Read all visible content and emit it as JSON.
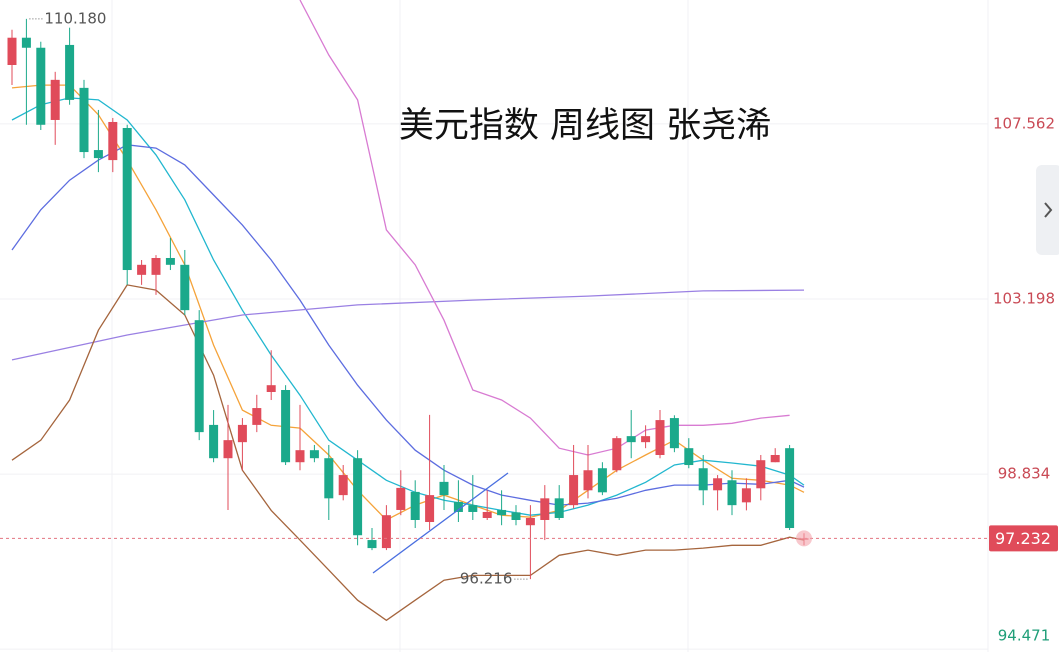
{
  "chart_data": {
    "type": "candlestick",
    "title": "美元指数 周线图 张尧浠",
    "ylim": [
      94.4,
      110.65
    ],
    "yticks": [
      107.562,
      103.198,
      98.834,
      94.471
    ],
    "up_color": "#e04b5a",
    "down_color": "#1ba98b",
    "open": [
      109.03,
      109.71,
      109.46,
      107.66,
      109.53,
      108.46,
      106.91,
      106.66,
      107.46,
      103.8,
      103.8,
      104.22,
      104.05,
      102.67,
      100.06,
      99.23,
      99.63,
      100.06,
      100.88,
      100.93,
      99.13,
      99.43,
      99.23,
      98.31,
      99.23,
      97.19,
      96.99,
      97.94,
      98.39,
      97.64,
      98.64,
      98.14,
      98.06,
      97.74,
      97.94,
      97.88,
      97.56,
      97.69,
      98.23,
      98.06,
      98.43,
      98.98,
      98.93,
      99.78,
      99.63,
      99.31,
      100.23,
      99.48,
      98.98,
      98.43,
      98.68,
      98.13,
      98.48,
      99.13,
      99.48,
      97.2
    ],
    "high": [
      109.91,
      110.18,
      109.61,
      108.86,
      109.96,
      108.66,
      107.91,
      107.71,
      107.54,
      104.17,
      104.29,
      104.72,
      104.42,
      102.92,
      100.43,
      100.56,
      100.23,
      100.81,
      101.92,
      101.05,
      100.56,
      99.56,
      99.56,
      99.06,
      99.43,
      97.49,
      98.06,
      98.93,
      98.68,
      100.31,
      99.06,
      98.68,
      98.81,
      98.43,
      98.43,
      98.06,
      98.06,
      98.56,
      98.56,
      99.56,
      99.56,
      99.13,
      99.78,
      100.43,
      100.05,
      100.43,
      100.3,
      99.73,
      99.31,
      98.81,
      98.93,
      98.73,
      99.31,
      99.48,
      99.56,
      97.36
    ],
    "low": [
      108.53,
      107.54,
      107.41,
      107.04,
      108.04,
      106.71,
      106.36,
      106.36,
      103.55,
      103.55,
      103.3,
      103.92,
      102.8,
      99.68,
      99.13,
      97.94,
      98.93,
      99.88,
      100.68,
      99.06,
      98.93,
      99.13,
      97.69,
      98.18,
      97.06,
      96.94,
      96.94,
      97.81,
      97.49,
      97.44,
      97.94,
      97.64,
      97.69,
      97.69,
      97.56,
      97.56,
      96.216,
      97.19,
      97.69,
      97.98,
      98.23,
      98.31,
      98.88,
      99.23,
      99.48,
      99.23,
      99.38,
      98.98,
      98.06,
      97.93,
      97.81,
      97.93,
      98.18,
      99.13,
      97.44,
      97.06
    ],
    "close": [
      109.71,
      109.46,
      107.54,
      108.66,
      108.16,
      106.86,
      106.71,
      107.61,
      103.92,
      104.05,
      104.22,
      104.05,
      102.92,
      99.88,
      99.23,
      99.68,
      100.06,
      100.48,
      101.05,
      99.13,
      99.43,
      99.23,
      98.23,
      98.81,
      97.31,
      96.99,
      97.81,
      98.49,
      97.69,
      98.31,
      98.31,
      97.89,
      97.89,
      97.89,
      97.81,
      97.69,
      97.74,
      98.23,
      97.74,
      98.81,
      98.93,
      98.38,
      99.73,
      99.63,
      99.78,
      100.18,
      99.48,
      99.06,
      98.43,
      98.73,
      98.06,
      98.48,
      99.18,
      99.31,
      97.49,
      97.232
    ],
    "lines": [
      {
        "color": "#f5a33a",
        "x": [
          0,
          2,
          4,
          6,
          8,
          10,
          12,
          14,
          16,
          18,
          20,
          22,
          24,
          26,
          28,
          30,
          32,
          34,
          36,
          38,
          40,
          42,
          44,
          46,
          48,
          50,
          52,
          54,
          55
        ],
        "values": [
          108.46,
          108.53,
          108.53,
          107.79,
          106.66,
          105.42,
          104.05,
          102.05,
          100.43,
          100.05,
          99.98,
          99.31,
          98.43,
          97.69,
          98.06,
          98.31,
          98.06,
          97.81,
          97.76,
          97.93,
          98.43,
          98.93,
          99.31,
          99.68,
          99.18,
          98.73,
          98.68,
          98.56,
          98.38
        ]
      },
      {
        "color": "#22b7cf",
        "x": [
          0,
          2,
          4,
          6,
          8,
          10,
          12,
          14,
          16,
          18,
          20,
          22,
          24,
          26,
          28,
          30,
          32,
          34,
          36,
          38,
          40,
          42,
          44,
          46,
          48,
          50,
          52,
          54,
          55
        ],
        "values": [
          107.66,
          108.04,
          108.21,
          108.16,
          107.66,
          106.79,
          105.67,
          104.17,
          102.92,
          101.8,
          100.8,
          99.68,
          99.18,
          98.68,
          98.38,
          98.18,
          98.06,
          97.93,
          97.81,
          97.88,
          98.06,
          98.31,
          98.63,
          99.06,
          99.18,
          99.11,
          99.03,
          98.81,
          98.56
        ]
      },
      {
        "color": "#5d6de0",
        "x": [
          0,
          2,
          4,
          6,
          8,
          10,
          12,
          14,
          16,
          18,
          20,
          22,
          24,
          26,
          28,
          30,
          32,
          34,
          36,
          38,
          40,
          42,
          44,
          46,
          48,
          50,
          52,
          54,
          55
        ],
        "values": [
          104.42,
          105.42,
          106.16,
          106.66,
          107.04,
          106.96,
          106.54,
          105.79,
          105.04,
          104.17,
          103.17,
          102.05,
          101.05,
          100.18,
          99.43,
          98.93,
          98.56,
          98.31,
          98.18,
          98.06,
          98.11,
          98.23,
          98.43,
          98.56,
          98.56,
          98.61,
          98.58,
          98.68,
          98.51
        ]
      },
      {
        "color": "#9a80e3",
        "x": [
          0,
          8,
          16,
          24,
          32,
          40,
          48,
          55
        ],
        "values": [
          101.68,
          102.3,
          102.8,
          103.05,
          103.17,
          103.27,
          103.4,
          103.42
        ]
      },
      {
        "color": "#d87bd2",
        "x": [
          20,
          22,
          24,
          26,
          28,
          30,
          32,
          34,
          36,
          38,
          40,
          42,
          44,
          46,
          48,
          50,
          52,
          54
        ],
        "values": [
          110.65,
          109.28,
          108.16,
          104.92,
          104.05,
          102.67,
          100.93,
          100.68,
          100.23,
          99.48,
          99.31,
          99.48,
          99.93,
          100.05,
          100.05,
          100.1,
          100.23,
          100.3
        ]
      },
      {
        "color": "#a5653d",
        "x": [
          0,
          2,
          4,
          6,
          8,
          10,
          12,
          14,
          16,
          18,
          20,
          22,
          24,
          26,
          28,
          30,
          32,
          34,
          36,
          38,
          40,
          42,
          44,
          46,
          48,
          50,
          52,
          54,
          55
        ],
        "values": [
          99.18,
          99.68,
          100.68,
          102.42,
          103.55,
          103.42,
          102.8,
          101.3,
          98.93,
          97.93,
          97.19,
          96.44,
          95.69,
          95.19,
          95.69,
          96.19,
          96.31,
          96.31,
          96.31,
          96.81,
          96.94,
          96.81,
          96.94,
          96.94,
          96.99,
          97.06,
          97.06,
          97.26,
          97.19
        ]
      }
    ],
    "last_price": 97.232,
    "annotations": [
      {
        "value": 110.18,
        "label": "110.180"
      },
      {
        "value": 96.216,
        "label": "96.216"
      }
    ]
  }
}
